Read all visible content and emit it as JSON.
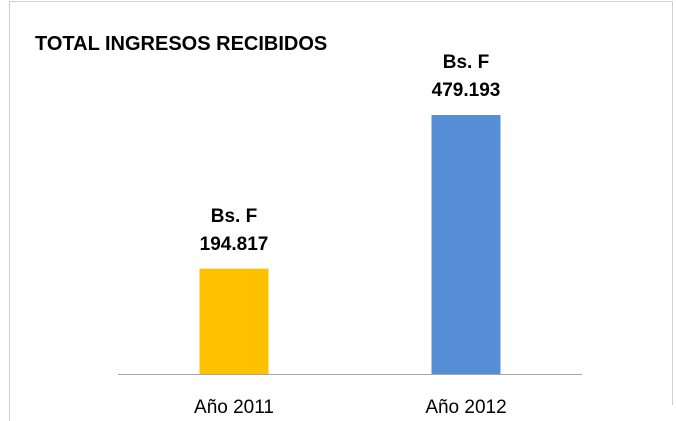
{
  "chart_data": {
    "type": "bar",
    "title": "TOTAL INGRESOS RECIBIDOS",
    "categories": [
      "Año 2011",
      "Año 2012"
    ],
    "values": [
      194817,
      479193
    ],
    "value_labels": [
      "Bs. F\n194.817",
      "Bs. F\n479.193"
    ],
    "colors": [
      "#ffc000",
      "#558ed5"
    ]
  }
}
